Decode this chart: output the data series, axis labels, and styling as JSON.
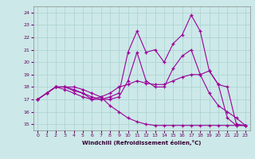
{
  "xlabel": "Windchill (Refroidissement éolien,°C)",
  "background_color": "#cce8e8",
  "grid_color": "#aad0d0",
  "line_color": "#990099",
  "xlim": [
    -0.5,
    23.5
  ],
  "ylim": [
    14.5,
    24.5
  ],
  "yticks": [
    15,
    16,
    17,
    18,
    19,
    20,
    21,
    22,
    23,
    24
  ],
  "xticks": [
    0,
    1,
    2,
    3,
    4,
    5,
    6,
    7,
    8,
    9,
    10,
    11,
    12,
    13,
    14,
    15,
    16,
    17,
    18,
    19,
    20,
    21,
    22,
    23
  ],
  "lines": [
    [
      17.0,
      17.5,
      18.0,
      18.0,
      18.0,
      17.8,
      17.5,
      17.2,
      17.5,
      18.0,
      18.2,
      18.5,
      18.3,
      18.2,
      18.2,
      18.5,
      18.8,
      19.0,
      19.0,
      19.3,
      18.2,
      18.0,
      15.0,
      14.9
    ],
    [
      17.0,
      17.5,
      18.0,
      18.0,
      17.8,
      17.5,
      17.2,
      17.0,
      17.2,
      17.5,
      20.8,
      22.5,
      20.8,
      21.0,
      20.0,
      21.5,
      22.2,
      23.8,
      22.5,
      19.3,
      18.2,
      15.5,
      14.9,
      14.9
    ],
    [
      17.0,
      17.5,
      18.0,
      18.0,
      17.7,
      17.5,
      17.0,
      17.0,
      17.0,
      17.2,
      18.5,
      20.8,
      18.5,
      18.0,
      18.0,
      19.5,
      20.5,
      21.0,
      19.0,
      17.5,
      16.5,
      16.0,
      15.5,
      14.9
    ],
    [
      17.0,
      17.5,
      18.0,
      17.8,
      17.5,
      17.2,
      17.0,
      17.2,
      16.5,
      16.0,
      15.5,
      15.2,
      15.0,
      14.9,
      14.9,
      14.9,
      14.9,
      14.9,
      14.9,
      14.9,
      14.9,
      14.9,
      14.9,
      14.9
    ]
  ]
}
